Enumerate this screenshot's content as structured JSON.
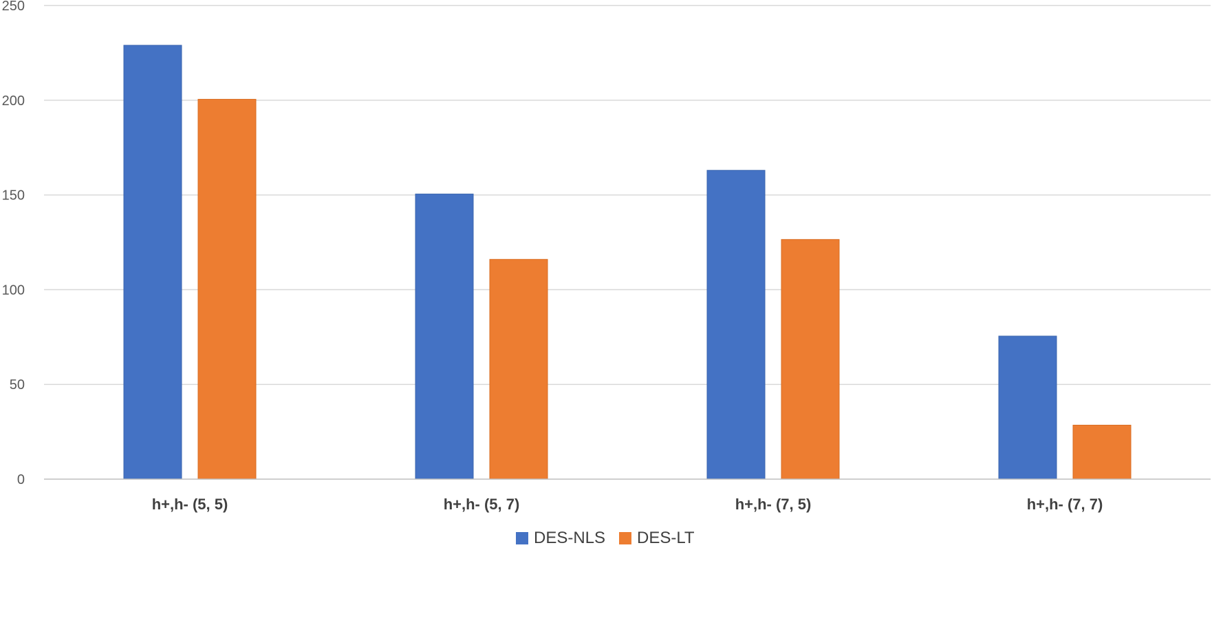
{
  "chart_data": {
    "type": "bar",
    "title": "",
    "xlabel": "",
    "ylabel": "",
    "categories": [
      "h+,h- (5, 5)",
      "h+,h- (5, 7)",
      "h+,h- (7, 5)",
      "h+,h- (7, 7)"
    ],
    "series": [
      {
        "name": "DES-NLS",
        "color": "#4472c4",
        "values": [
          229,
          150.5,
          163,
          75.5
        ]
      },
      {
        "name": "DES-LT",
        "color": "#ed7d31",
        "values": [
          200.5,
          116,
          126.5,
          28.5
        ]
      }
    ],
    "ylim": [
      0,
      250
    ],
    "yticks": [
      "0",
      "50",
      "100",
      "150",
      "200",
      "250"
    ],
    "grid": true,
    "legend_position": "bottom"
  }
}
